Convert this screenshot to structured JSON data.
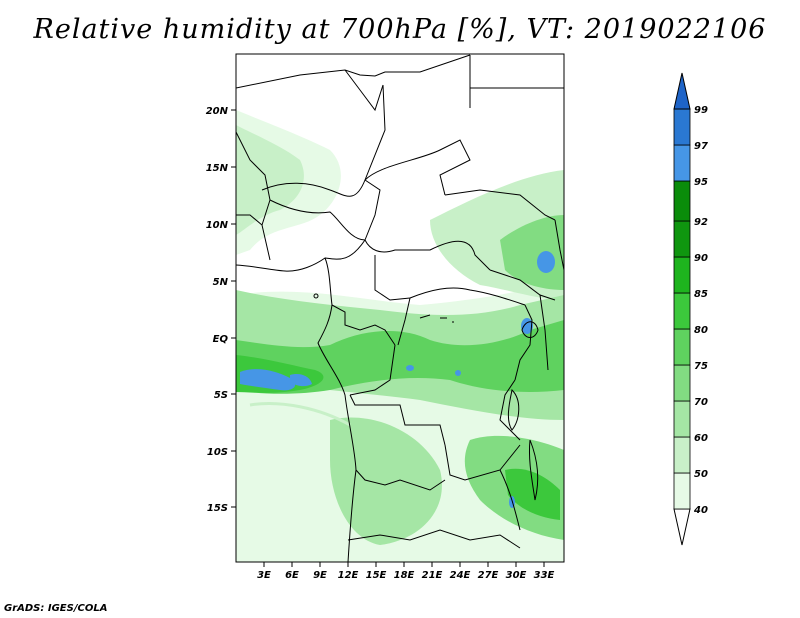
{
  "title": "Relative humidity at 700hPa [%], VT: 2019022106",
  "credit": "GrADS: IGES/COLA",
  "axes": {
    "lat_labels": [
      "20N",
      "15N",
      "10N",
      "5N",
      "EQ",
      "5S",
      "10S",
      "15S"
    ],
    "lon_labels": [
      "3E",
      "6E",
      "9E",
      "12E",
      "15E",
      "18E",
      "21E",
      "24E",
      "27E",
      "30E",
      "33E"
    ]
  },
  "colorbar": {
    "labels": [
      "40",
      "50",
      "60",
      "70",
      "75",
      "80",
      "85",
      "90",
      "92",
      "95",
      "97",
      "99"
    ],
    "colors": [
      "#ffffff",
      "#e6fae6",
      "#c8f0c8",
      "#a5e6a5",
      "#82dc82",
      "#5fd25f",
      "#3cc83c",
      "#1eb41e",
      "#0f960f",
      "#4696e6",
      "#2a78d2",
      "#145ab4"
    ],
    "arrow_color": "#1e64c8"
  },
  "field": {
    "variable": "Relative humidity",
    "level": "700hPa",
    "units": "%",
    "valid_time": "2019022106"
  }
}
